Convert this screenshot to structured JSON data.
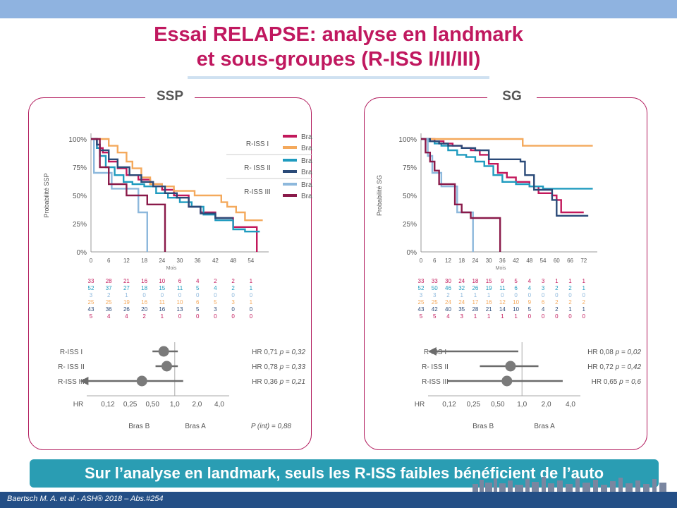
{
  "title_line1": "Essai RELAPSE: analyse en landmark",
  "title_line2": "et sous-groupes (R-ISS I/II/III)",
  "conclusion": "Sur l’analyse en landmark, seuls les R-ISS faibles bénéficient de l’auto",
  "footer": "Baertsch M. A. et al.- ASH® 2018 – Abs.#254",
  "colors": {
    "riss1_a": "#c2185b",
    "riss1_b": "#f4a95c",
    "riss2_a": "#1f9bbf",
    "riss2_b": "#2a4a78",
    "riss3_a": "#8db8dc",
    "riss3_b": "#8a1a4a"
  },
  "chart_data": [
    {
      "type": "line",
      "title": "SSP",
      "xlabel": "Mois",
      "ylabel": "Probabilité SSP",
      "xlim": [
        0,
        60
      ],
      "xticks": [
        0,
        6,
        12,
        18,
        24,
        30,
        36,
        42,
        48,
        54
      ],
      "ylim": [
        0,
        100
      ],
      "yticks": [
        "0%",
        "25%",
        "50%",
        "75%",
        "100%"
      ],
      "legend": [
        {
          "group": "R-ISS I",
          "entries": [
            "Bras A",
            "Bras B"
          ]
        },
        {
          "group": "R- ISS II",
          "entries": [
            "Bras A",
            "Bras B"
          ]
        },
        {
          "group": "R-ISS III",
          "entries": [
            "Bras A",
            "Bras B"
          ]
        }
      ],
      "series": [
        {
          "name": "R-ISS I Bras A",
          "color": "#c2185b",
          "points": [
            [
              0,
              100
            ],
            [
              1,
              100
            ],
            [
              2,
              92
            ],
            [
              4,
              88
            ],
            [
              6,
              80
            ],
            [
              9,
              74
            ],
            [
              12,
              68
            ],
            [
              16,
              64
            ],
            [
              20,
              60
            ],
            [
              24,
              55
            ],
            [
              28,
              50
            ],
            [
              33,
              40
            ],
            [
              37,
              35
            ],
            [
              42,
              30
            ],
            [
              48,
              22
            ],
            [
              55,
              22
            ],
            [
              56,
              0
            ]
          ]
        },
        {
          "name": "R-ISS I Bras B",
          "color": "#f4a95c",
          "points": [
            [
              0,
              100
            ],
            [
              4,
              100
            ],
            [
              6,
              94
            ],
            [
              9,
              88
            ],
            [
              12,
              80
            ],
            [
              14,
              74
            ],
            [
              17,
              66
            ],
            [
              20,
              60
            ],
            [
              24,
              58
            ],
            [
              28,
              54
            ],
            [
              35,
              50
            ],
            [
              44,
              44
            ],
            [
              46,
              40
            ],
            [
              49,
              35
            ],
            [
              52,
              28
            ],
            [
              58,
              28
            ]
          ]
        },
        {
          "name": "R- ISS II Bras A",
          "color": "#1f9bbf",
          "points": [
            [
              0,
              100
            ],
            [
              2,
              92
            ],
            [
              3,
              85
            ],
            [
              5,
              75
            ],
            [
              8,
              68
            ],
            [
              11,
              62
            ],
            [
              14,
              60
            ],
            [
              18,
              58
            ],
            [
              22,
              52
            ],
            [
              26,
              48
            ],
            [
              30,
              44
            ],
            [
              34,
              40
            ],
            [
              38,
              33
            ],
            [
              42,
              28
            ],
            [
              48,
              20
            ],
            [
              52,
              18
            ],
            [
              57,
              18
            ]
          ]
        },
        {
          "name": "R- ISS II Bras B",
          "color": "#2a4a78",
          "points": [
            [
              0,
              100
            ],
            [
              2,
              95
            ],
            [
              3,
              90
            ],
            [
              6,
              82
            ],
            [
              9,
              75
            ],
            [
              13,
              68
            ],
            [
              17,
              62
            ],
            [
              21,
              58
            ],
            [
              25,
              52
            ],
            [
              29,
              48
            ],
            [
              33,
              40
            ],
            [
              37,
              34
            ],
            [
              42,
              30
            ],
            [
              48,
              30
            ]
          ]
        },
        {
          "name": "R-ISS III Bras A",
          "color": "#8db8dc",
          "points": [
            [
              0,
              100
            ],
            [
              1,
              70
            ],
            [
              6,
              70
            ],
            [
              7,
              56
            ],
            [
              12,
              56
            ],
            [
              16,
              35
            ],
            [
              18,
              35
            ],
            [
              19,
              0
            ]
          ]
        },
        {
          "name": "R-ISS III Bras B",
          "color": "#8a1a4a",
          "points": [
            [
              0,
              100
            ],
            [
              3,
              75
            ],
            [
              6,
              60
            ],
            [
              12,
              50
            ],
            [
              19,
              42
            ],
            [
              24,
              42
            ],
            [
              25,
              0
            ]
          ]
        }
      ],
      "risk_table": {
        "rows": [
          {
            "color": "#c2185b",
            "values": [
              "33",
              "28",
              "21",
              "16",
              "10",
              "6",
              "4",
              "2",
              "2",
              "1"
            ]
          },
          {
            "color": "#1f9bbf",
            "values": [
              "52",
              "37",
              "27",
              "18",
              "15",
              "11",
              "5",
              "4",
              "2",
              "1"
            ]
          },
          {
            "color": "#8db8dc",
            "values": [
              "3",
              "2",
              "1",
              "0",
              "0",
              "0",
              "0",
              "0",
              "0",
              "0"
            ]
          },
          {
            "color": "#f4a95c",
            "values": [
              "25",
              "25",
              "19",
              "16",
              "11",
              "10",
              "6",
              "5",
              "3",
              "1"
            ]
          },
          {
            "color": "#2a4a78",
            "values": [
              "43",
              "36",
              "26",
              "20",
              "16",
              "13",
              "5",
              "3",
              "0",
              "0"
            ]
          },
          {
            "color": "#c2185b",
            "values": [
              "5",
              "4",
              "4",
              "2",
              "1",
              "0",
              "0",
              "0",
              "0",
              "0"
            ]
          }
        ]
      },
      "forest": {
        "rows": [
          {
            "label": "R-ISS I",
            "hr_text": "HR 0,71 ",
            "p_text": "p = 0,32",
            "hr": 0.71,
            "lo": 0.5,
            "hi": 1.1,
            "arrow_left": false
          },
          {
            "label": "R- ISS II",
            "hr_text": "HR 0,78 ",
            "p_text": "p = 0,33",
            "hr": 0.78,
            "lo": 0.55,
            "hi": 1.1,
            "arrow_left": false
          },
          {
            "label": "R-ISS III",
            "hr_text": "HR 0,36 ",
            "p_text": "p = 0,21",
            "hr": 0.36,
            "lo": 0.06,
            "hi": 1.3,
            "arrow_left": true
          }
        ],
        "hr_label": "HR",
        "ticks": [
          {
            "label": "0,12",
            "value": 0.125
          },
          {
            "label": "0,25",
            "value": 0.25
          },
          {
            "label": "0,50",
            "value": 0.5
          },
          {
            "label": "1,0",
            "value": 1.0
          },
          {
            "label": "2,0",
            "value": 2.0
          },
          {
            "label": "4,0",
            "value": 4.0
          }
        ],
        "left_label": "Bras B",
        "right_label": "Bras A",
        "pint_label": "P (int) = 0,88"
      }
    },
    {
      "type": "line",
      "title": "SG",
      "xlabel": "Mois",
      "ylabel": "Probabilité SG",
      "xlim": [
        0,
        78
      ],
      "xticks": [
        0,
        6,
        12,
        18,
        24,
        30,
        36,
        42,
        48,
        54,
        60,
        66,
        72
      ],
      "ylim": [
        0,
        100
      ],
      "yticks": [
        "0%",
        "25%",
        "50%",
        "75%",
        "100%"
      ],
      "legend": [],
      "series": [
        {
          "name": "R-ISS I Bras A",
          "color": "#c2185b",
          "points": [
            [
              0,
              100
            ],
            [
              6,
              98
            ],
            [
              10,
              96
            ],
            [
              14,
              94
            ],
            [
              18,
              92
            ],
            [
              22,
              90
            ],
            [
              26,
              86
            ],
            [
              30,
              78
            ],
            [
              34,
              70
            ],
            [
              38,
              66
            ],
            [
              42,
              62
            ],
            [
              48,
              58
            ],
            [
              52,
              52
            ],
            [
              58,
              50
            ],
            [
              60,
              46
            ],
            [
              62,
              35
            ],
            [
              72,
              35
            ]
          ]
        },
        {
          "name": "R-ISS I Bras B",
          "color": "#f4a95c",
          "points": [
            [
              0,
              100
            ],
            [
              44,
              100
            ],
            [
              45,
              94
            ],
            [
              76,
              94
            ]
          ]
        },
        {
          "name": "R- ISS II Bras A",
          "color": "#1f9bbf",
          "points": [
            [
              0,
              100
            ],
            [
              3,
              98
            ],
            [
              6,
              96
            ],
            [
              9,
              94
            ],
            [
              12,
              90
            ],
            [
              16,
              86
            ],
            [
              20,
              84
            ],
            [
              24,
              80
            ],
            [
              28,
              76
            ],
            [
              32,
              68
            ],
            [
              36,
              62
            ],
            [
              42,
              60
            ],
            [
              48,
              58
            ],
            [
              54,
              56
            ],
            [
              76,
              56
            ]
          ]
        },
        {
          "name": "R- ISS II Bras B",
          "color": "#2a4a78",
          "points": [
            [
              0,
              100
            ],
            [
              4,
              98
            ],
            [
              8,
              96
            ],
            [
              12,
              94
            ],
            [
              18,
              92
            ],
            [
              24,
              90
            ],
            [
              30,
              82
            ],
            [
              44,
              80
            ],
            [
              46,
              68
            ],
            [
              50,
              55
            ],
            [
              58,
              46
            ],
            [
              60,
              32
            ],
            [
              74,
              32
            ]
          ]
        },
        {
          "name": "R-ISS III Bras A",
          "color": "#8db8dc",
          "points": [
            [
              0,
              100
            ],
            [
              3,
              85
            ],
            [
              5,
              70
            ],
            [
              8,
              70
            ],
            [
              9,
              58
            ],
            [
              15,
              58
            ],
            [
              16,
              35
            ],
            [
              22,
              35
            ],
            [
              23,
              0
            ]
          ]
        },
        {
          "name": "R-ISS III Bras B",
          "color": "#8a1a4a",
          "points": [
            [
              0,
              100
            ],
            [
              2,
              88
            ],
            [
              4,
              80
            ],
            [
              6,
              72
            ],
            [
              8,
              60
            ],
            [
              14,
              60
            ],
            [
              15,
              42
            ],
            [
              18,
              35
            ],
            [
              22,
              30
            ],
            [
              34,
              30
            ],
            [
              35,
              0
            ]
          ]
        }
      ],
      "risk_table": {
        "rows": [
          {
            "color": "#c2185b",
            "values": [
              "33",
              "33",
              "30",
              "24",
              "18",
              "15",
              "9",
              "5",
              "4",
              "3",
              "1",
              "1",
              "1"
            ]
          },
          {
            "color": "#1f9bbf",
            "values": [
              "52",
              "50",
              "46",
              "32",
              "26",
              "19",
              "11",
              "6",
              "4",
              "3",
              "2",
              "2",
              "1"
            ]
          },
          {
            "color": "#8db8dc",
            "values": [
              "3",
              "3",
              "2",
              "1",
              "1",
              "1",
              "0",
              "0",
              "0",
              "0",
              "0",
              "0",
              "0"
            ]
          },
          {
            "color": "#f4a95c",
            "values": [
              "25",
              "25",
              "24",
              "24",
              "17",
              "16",
              "12",
              "10",
              "9",
              "6",
              "2",
              "2",
              "2"
            ]
          },
          {
            "color": "#2a4a78",
            "values": [
              "43",
              "42",
              "40",
              "35",
              "28",
              "21",
              "14",
              "10",
              "5",
              "4",
              "2",
              "1",
              "1"
            ]
          },
          {
            "color": "#c2185b",
            "values": [
              "5",
              "5",
              "4",
              "3",
              "1",
              "1",
              "1",
              "1",
              "0",
              "0",
              "0",
              "0",
              "0"
            ]
          }
        ]
      },
      "forest": {
        "rows": [
          {
            "label": "R-ISS I",
            "hr_text": "HR 0,08 ",
            "p_text": "p = 0,02",
            "hr": 0.08,
            "lo": 0.08,
            "hi": 0.9,
            "arrow_left": true,
            "no_point": true
          },
          {
            "label": "R- ISS II",
            "hr_text": "HR 0,72 ",
            "p_text": "p = 0,42",
            "hr": 0.72,
            "lo": 0.3,
            "hi": 1.6,
            "arrow_left": false
          },
          {
            "label": "R-ISS III",
            "hr_text": "HR 0,65 ",
            "p_text": "p = 0,6",
            "hr": 0.65,
            "lo": 0.12,
            "hi": 3.2,
            "arrow_left": false
          }
        ],
        "hr_label": "HR",
        "ticks": [
          {
            "label": "0,12",
            "value": 0.125
          },
          {
            "label": "0,25",
            "value": 0.25
          },
          {
            "label": "0,50",
            "value": 0.5
          },
          {
            "label": "1,0",
            "value": 1.0
          },
          {
            "label": "2,0",
            "value": 2.0
          },
          {
            "label": "4,0",
            "value": 4.0
          }
        ],
        "left_label": "Bras B",
        "right_label": "Bras A",
        "pint_label": ""
      }
    }
  ]
}
